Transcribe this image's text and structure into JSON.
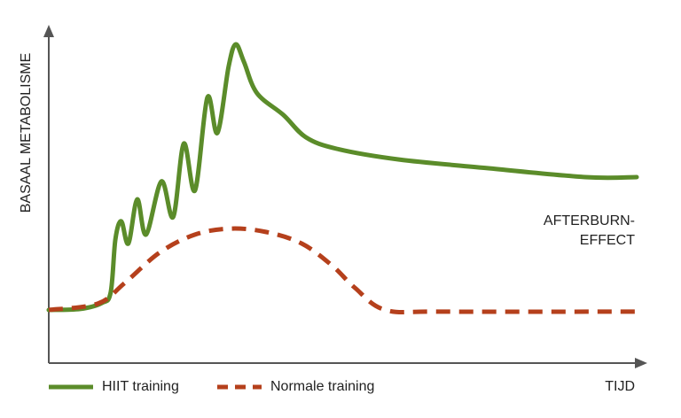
{
  "chart_data": {
    "type": "line",
    "x_label": "TIJD",
    "y_label": "BASAAL METABOLISME",
    "annotation": [
      "AFTERBURN-",
      "EFFECT"
    ],
    "xlim": [
      0,
      100
    ],
    "ylim": [
      0,
      100
    ],
    "series": [
      {
        "name": "HIIT training",
        "color": "#5b8c2a",
        "dash": false,
        "x": [
          0,
          5.3,
          9.0,
          10.5,
          11.3,
          12.3,
          13.5,
          15.0,
          16.5,
          19.1,
          21.1,
          22.9,
          24.8,
          26.9,
          28.6,
          30.5,
          31.7,
          33.1,
          35.3,
          39.8,
          43.6,
          48.9,
          59.4,
          74.4,
          91.0,
          99.7
        ],
        "values": [
          16,
          16.3,
          18.1,
          21.3,
          37.3,
          42.7,
          36,
          49.3,
          38.7,
          54.7,
          44,
          66.1,
          52,
          80,
          69.3,
          89.3,
          96,
          90.7,
          81.3,
          74.7,
          68,
          64.5,
          61.3,
          58.7,
          56,
          56
        ]
      },
      {
        "name": "Normale training",
        "color": "#b5401c",
        "dash": true,
        "x": [
          0,
          8.3,
          12.8,
          18.8,
          24.8,
          30.8,
          36.8,
          42.9,
          48.1,
          51.9,
          57.1,
          66.9,
          99.7
        ],
        "values": [
          16,
          17.9,
          24,
          33.3,
          38.7,
          40.5,
          39.5,
          36,
          29.3,
          22.7,
          16,
          15.5,
          15.5
        ]
      }
    ]
  }
}
